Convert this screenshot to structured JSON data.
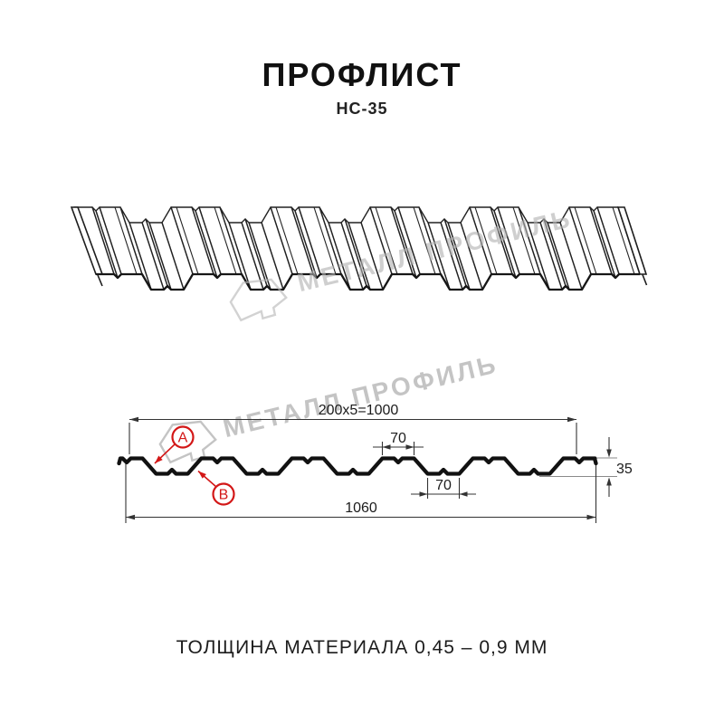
{
  "header": {
    "title": "ПРОФЛИСТ",
    "subtitle": "НС-35"
  },
  "watermark": {
    "text": "МЕТАЛЛ ПРОФИЛЬ",
    "color": "#c4c4c4",
    "logo": "metall-profil-hexagon"
  },
  "cross_section": {
    "dimensions": {
      "rib_spacing": "200x5=1000",
      "crest_width": "70",
      "trough_width": "70",
      "profile_height": "35",
      "total_width": "1060"
    },
    "point_labels": {
      "a": "A",
      "b": "B"
    }
  },
  "footer": {
    "thickness_note": "ТОЛЩИНА МАТЕРИАЛА 0,45 – 0,9 ММ"
  },
  "colors": {
    "line": "#1a1a1a",
    "dimension": "#333333",
    "annotation_red": "#d31717",
    "watermark_gray": "#c4c4c4"
  }
}
